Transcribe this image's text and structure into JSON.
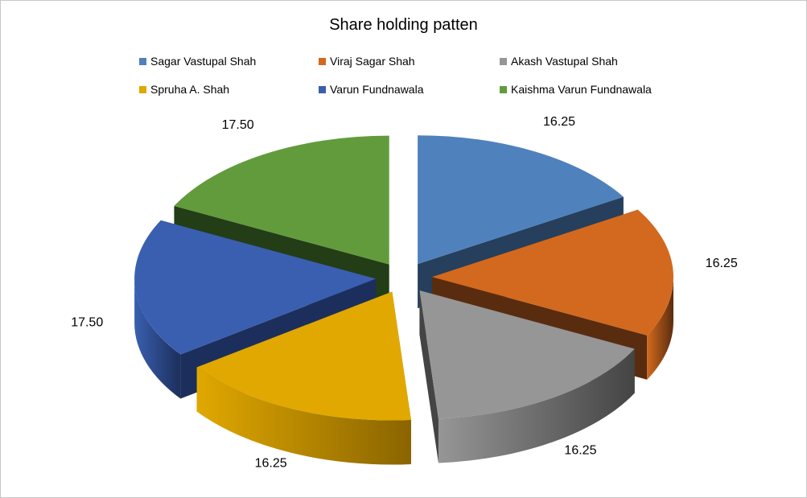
{
  "chart_data": {
    "type": "pie",
    "title": "Share holding patten",
    "categories": [
      "Sagar Vastupal Shah",
      "Viraj Sagar Shah",
      "Akash Vastupal Shah",
      "Spruha A. Shah",
      "Varun Fundnawala",
      "Kaishma Varun  Fundnawala"
    ],
    "values": [
      16.25,
      16.25,
      16.25,
      16.25,
      17.5,
      17.5
    ],
    "value_labels": [
      "16.25",
      "16.25",
      "16.25",
      "16.25",
      "17.50",
      "17.50"
    ],
    "colors": [
      "#4f81bd",
      "#d2691e",
      "#969696",
      "#e0a800",
      "#3a5fb0",
      "#629b3c"
    ],
    "side_colors": [
      "#253f5c",
      "#5a2c0f",
      "#444444",
      "#8a6400",
      "#1c2f5c",
      "#233d17"
    ],
    "legend_position": "top",
    "style": "3d-exploded"
  }
}
